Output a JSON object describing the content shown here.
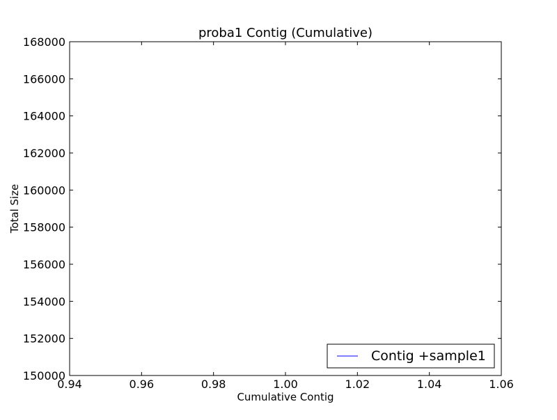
{
  "chart_data": {
    "type": "line",
    "title": "proba1 Contig (Cumulative)",
    "xlabel": "Cumulative Contig",
    "ylabel": "Total Size",
    "xlim": [
      0.94,
      1.06
    ],
    "ylim": [
      150000,
      168000
    ],
    "x_ticks": [
      0.94,
      0.96,
      0.98,
      1.0,
      1.02,
      1.04,
      1.06
    ],
    "x_tick_labels": [
      "0.94",
      "0.96",
      "0.98",
      "1.00",
      "1.02",
      "1.04",
      "1.06"
    ],
    "y_ticks": [
      150000,
      152000,
      154000,
      156000,
      158000,
      160000,
      162000,
      164000,
      166000,
      168000
    ],
    "y_tick_labels": [
      "150000",
      "152000",
      "154000",
      "156000",
      "158000",
      "160000",
      "162000",
      "164000",
      "166000",
      "168000"
    ],
    "grid": false,
    "legend_position": "lower-right",
    "series": [
      {
        "name": "Contig +sample1",
        "color": "#0000ff",
        "x": [],
        "y": []
      }
    ]
  }
}
